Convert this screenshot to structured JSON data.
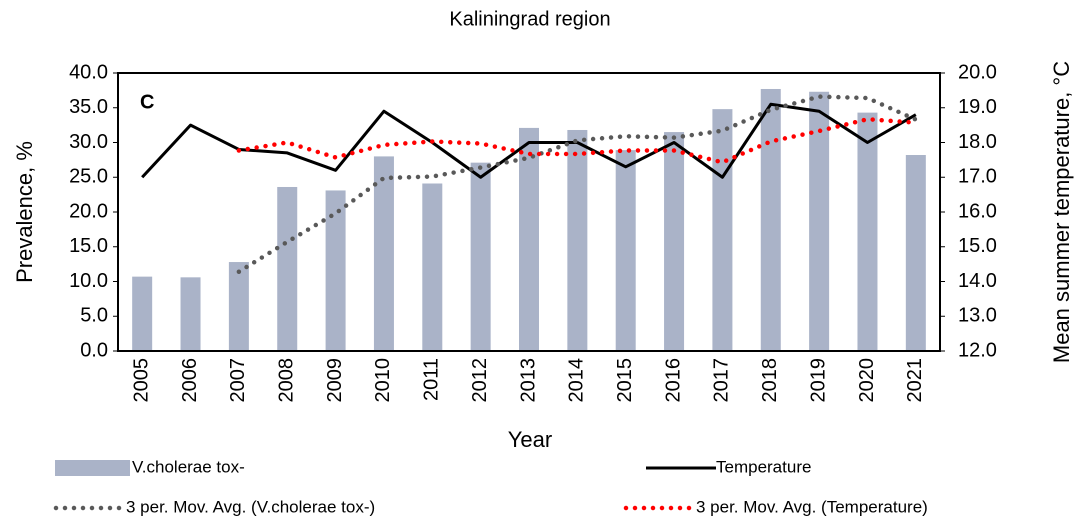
{
  "chart_data": {
    "type": "bar",
    "title": "Kaliningrad region",
    "annotation": "C",
    "x_label": "Year",
    "y_label": "Prevalence, %",
    "y2_label": "Mean summer temperature, °C",
    "categories": [
      "2005",
      "2006",
      "2007",
      "2008",
      "2009",
      "2010",
      "2011",
      "2012",
      "2013",
      "2014",
      "2015",
      "2016",
      "2017",
      "2018",
      "2019",
      "2020",
      "2021"
    ],
    "series": [
      {
        "name": "V.cholerae tox-",
        "type": "bar",
        "color": "#aab3c8",
        "values": [
          10.7,
          10.6,
          12.8,
          23.6,
          23.1,
          28.0,
          24.1,
          27.1,
          32.1,
          31.8,
          28.9,
          31.5,
          34.8,
          37.7,
          37.3,
          34.3,
          28.2
        ]
      },
      {
        "name": "Temperature",
        "type": "line",
        "axis": "y2",
        "color": "#000000",
        "dotted": false,
        "values": [
          17.0,
          18.5,
          17.8,
          17.7,
          17.2,
          18.9,
          18.0,
          17.0,
          18.0,
          18.0,
          17.3,
          18.0,
          17.0,
          19.1,
          18.9,
          18.0,
          18.8
        ]
      },
      {
        "name": "3 per. Mov. Avg. (V.cholerae tox-)",
        "type": "line",
        "color": "#595959",
        "dotted": true,
        "values": [
          null,
          null,
          11.4,
          15.7,
          19.8,
          24.9,
          25.1,
          26.4,
          27.8,
          30.3,
          30.9,
          30.7,
          31.7,
          34.7,
          36.6,
          36.4,
          33.3
        ]
      },
      {
        "name": "3 per. Mov. Avg. (Temperature)",
        "type": "line",
        "axis": "y2",
        "color": "#ff0000",
        "dotted": true,
        "values": [
          null,
          null,
          17.77,
          18.0,
          17.57,
          17.93,
          18.03,
          17.97,
          17.67,
          17.67,
          17.77,
          17.77,
          17.43,
          18.03,
          18.33,
          18.67,
          18.57
        ]
      }
    ],
    "ylim": [
      0,
      40
    ],
    "yticks": [
      {
        "value": 0,
        "label": "0.0"
      },
      {
        "value": 5,
        "label": "5.0"
      },
      {
        "value": 10,
        "label": "10.0"
      },
      {
        "value": 15,
        "label": "15.0"
      },
      {
        "value": 20,
        "label": "20.0"
      },
      {
        "value": 25,
        "label": "25.0"
      },
      {
        "value": 30,
        "label": "30.0"
      },
      {
        "value": 35,
        "label": "35.0"
      },
      {
        "value": 40,
        "label": "40.0"
      }
    ],
    "y2lim": [
      12,
      20
    ],
    "y2ticks": [
      {
        "value": 12,
        "label": "12.0"
      },
      {
        "value": 13,
        "label": "13.0"
      },
      {
        "value": 14,
        "label": "14.0"
      },
      {
        "value": 15,
        "label": "15.0"
      },
      {
        "value": 16,
        "label": "16.0"
      },
      {
        "value": 17,
        "label": "17.0"
      },
      {
        "value": 18,
        "label": "18.0"
      },
      {
        "value": 19,
        "label": "19.0"
      },
      {
        "value": 20,
        "label": "20.0"
      }
    ],
    "grid": false
  }
}
